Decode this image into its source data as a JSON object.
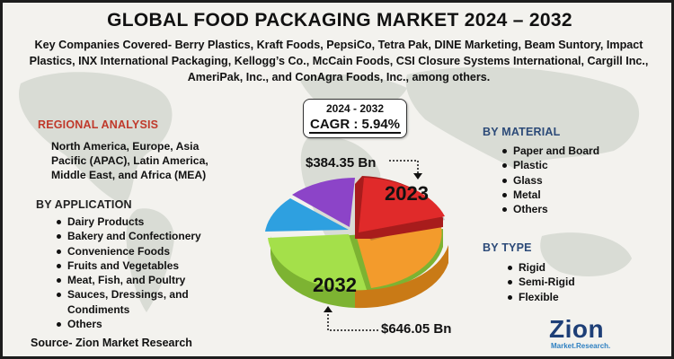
{
  "title": "GLOBAL FOOD PACKAGING MARKET 2024 – 2032",
  "companies": "Key Companies Covered- Berry Plastics, Kraft Foods, PepsiCo, Tetra Pak, DINE Marketing, Beam Suntory, Impact Plastics, INX International Packaging, Kellogg’s Co., McCain Foods, CSI Closure Systems International, Cargill Inc., AmeriPak, Inc., and ConAgra Foods, Inc., among others.",
  "regional": {
    "heading": "REGIONAL ANALYSIS",
    "text": "North America, Europe, Asia Pacific (APAC), Latin America, Middle East, and Africa (MEA)"
  },
  "application": {
    "heading": "BY APPLICATION",
    "items": [
      "Dairy Products",
      "Bakery and Confectionery",
      "Convenience Foods",
      "Fruits and Vegetables",
      "Meat, Fish, and Poultry",
      "Sauces, Dressings, and Condiments",
      "Others"
    ]
  },
  "material": {
    "heading": "BY MATERIAL",
    "items": [
      "Paper and Board",
      "Plastic",
      "Glass",
      "Metal",
      "Others"
    ]
  },
  "type": {
    "heading": "BY TYPE",
    "items": [
      "Rigid",
      "Semi-Rigid",
      "Flexible"
    ]
  },
  "cagr": {
    "years": "2024 - 2032",
    "value": "CAGR : 5.94%"
  },
  "values": {
    "v2023": "$384.35 Bn",
    "v2032": "$646.05 Bn"
  },
  "pie_labels": {
    "y2023": "2023",
    "y2032": "2032"
  },
  "source": "Source- Zion Market Research",
  "logo": {
    "main": "Zion",
    "sub": "Market.Research."
  },
  "colors": {
    "red": "#e02a2a",
    "orange": "#f39b2c",
    "green": "#a4e04a",
    "blue": "#2ea0e0",
    "purple": "#8c44c8",
    "heading_red": "#c0392b",
    "heading_blue": "#2c4a78"
  }
}
